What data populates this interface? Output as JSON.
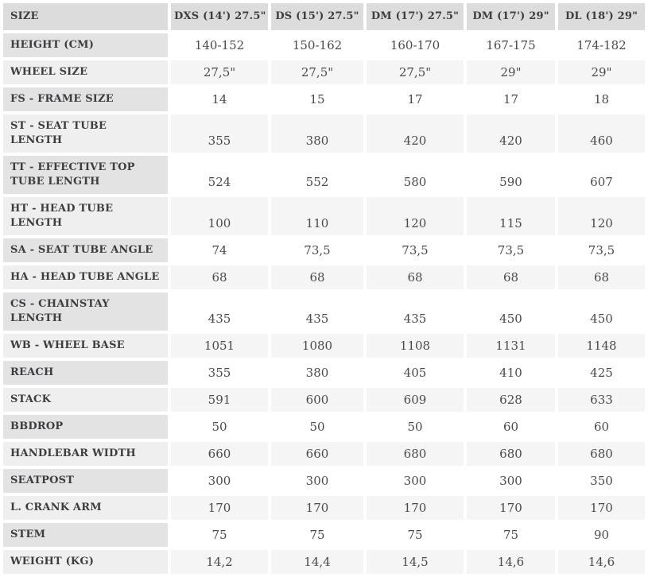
{
  "table": {
    "header": {
      "label": "SIZE",
      "columns": [
        "DXS (14') 27.5\"",
        "DS (15') 27.5\"",
        "DM (17') 27.5\"",
        "DM (17') 29\"",
        "DL (18') 29\""
      ]
    },
    "rows": [
      {
        "label": "HEIGHT (CM)",
        "values": [
          "140-152",
          "150-162",
          "160-170",
          "167-175",
          "174-182"
        ]
      },
      {
        "label": "WHEEL SIZE",
        "values": [
          "27,5\"",
          "27,5\"",
          "27,5\"",
          "29\"",
          "29\""
        ]
      },
      {
        "label": "FS - FRAME SIZE",
        "values": [
          "14",
          "15",
          "17",
          "17",
          "18"
        ]
      },
      {
        "label": "ST - SEAT TUBE LENGTH",
        "values": [
          "355",
          "380",
          "420",
          "420",
          "460"
        ]
      },
      {
        "label": "TT - EFFECTIVE TOP TUBE LENGTH",
        "values": [
          "524",
          "552",
          "580",
          "590",
          "607"
        ]
      },
      {
        "label": "HT - HEAD TUBE LENGTH",
        "values": [
          "100",
          "110",
          "120",
          "115",
          "120"
        ]
      },
      {
        "label": "SA - SEAT TUBE ANGLE",
        "values": [
          "74",
          "73,5",
          "73,5",
          "73,5",
          "73,5"
        ]
      },
      {
        "label": "HA - HEAD TUBE ANGLE",
        "values": [
          "68",
          "68",
          "68",
          "68",
          "68"
        ]
      },
      {
        "label": "CS - CHAINSTAY LENGTH",
        "values": [
          "435",
          "435",
          "435",
          "450",
          "450"
        ]
      },
      {
        "label": "WB - WHEEL BASE",
        "values": [
          "1051",
          "1080",
          "1108",
          "1131",
          "1148"
        ]
      },
      {
        "label": "REACH",
        "values": [
          "355",
          "380",
          "405",
          "410",
          "425"
        ]
      },
      {
        "label": "STACK",
        "values": [
          "591",
          "600",
          "609",
          "628",
          "633"
        ]
      },
      {
        "label": "BBDROP",
        "values": [
          "50",
          "50",
          "50",
          "60",
          "60"
        ]
      },
      {
        "label": "HANDLEBAR WIDTH",
        "values": [
          "660",
          "660",
          "680",
          "680",
          "680"
        ]
      },
      {
        "label": "SEATPOST",
        "values": [
          "300",
          "300",
          "300",
          "300",
          "350"
        ]
      },
      {
        "label": "L. CRANK ARM",
        "values": [
          "170",
          "170",
          "170",
          "170",
          "170"
        ]
      },
      {
        "label": "STEM",
        "values": [
          "75",
          "75",
          "75",
          "75",
          "90"
        ]
      },
      {
        "label": "WEIGHT (KG)",
        "values": [
          "14,2",
          "14,4",
          "14,5",
          "14,6",
          "14,6"
        ]
      }
    ]
  },
  "theme": {
    "header_bg": "#dcdcdc",
    "label_bg_a": "#e3e3e4",
    "label_bg_b": "#efefef",
    "cell_bg_a": "#ffffff",
    "cell_bg_b": "#f5f5f6",
    "label_text": "#3d3d3f",
    "value_text": "#4a4a4c",
    "page_bg": "#ffffff"
  }
}
